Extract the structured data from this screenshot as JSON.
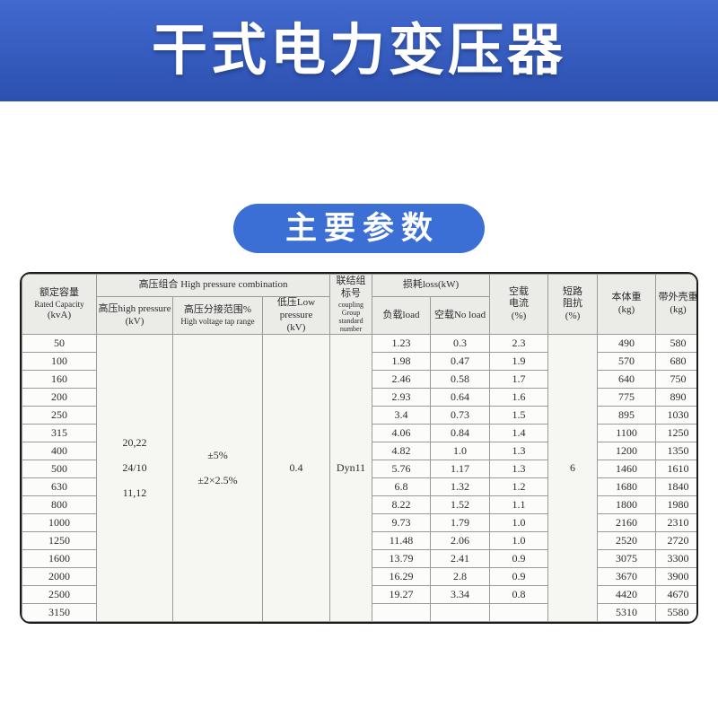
{
  "colors": {
    "banner_top": "#4269cf",
    "banner_bottom": "#2b50b0",
    "badge": "#3b6fd6"
  },
  "banner": {
    "title": "干式电力变压器"
  },
  "section_badge": {
    "label": "主要参数"
  },
  "table": {
    "header": {
      "rated_capacity": [
        "额定容量",
        "Rated Capacity",
        "(kvA)"
      ],
      "hp_group": "高压组合 High pressure combination",
      "high_pressure": [
        "高压high pressure",
        "(kV)"
      ],
      "tap_range": [
        "高压分接范围%",
        "High voltage tap range"
      ],
      "low_pressure": [
        "低压Low pressure",
        "(kV)"
      ],
      "coupling": [
        "联结组",
        "标号",
        "coupling",
        "Group standard",
        "number"
      ],
      "loss_group": "损耗loss(kW)",
      "load": "负载load",
      "no_load": "空载No load",
      "no_load_current": [
        "空载",
        "电流",
        "(%)"
      ],
      "impedance": [
        "短路",
        "阻抗",
        "(%)"
      ],
      "body_weight": [
        "本体重",
        "(kg)"
      ],
      "shell_weight": [
        "带外壳重",
        "(kg)"
      ]
    },
    "merged": {
      "high_pressure": [
        "20,22",
        "24/10",
        "11,12"
      ],
      "tap_range": [
        "±5%",
        "±2×2.5%"
      ],
      "low_pressure": "0.4",
      "coupling": "Dyn11",
      "impedance": "6"
    },
    "rows": [
      {
        "capacity": "50",
        "load": "1.23",
        "no_load": "0.3",
        "current": "2.3",
        "body_weight": "490",
        "shell_weight": "580"
      },
      {
        "capacity": "100",
        "load": "1.98",
        "no_load": "0.47",
        "current": "1.9",
        "body_weight": "570",
        "shell_weight": "680"
      },
      {
        "capacity": "160",
        "load": "2.46",
        "no_load": "0.58",
        "current": "1.7",
        "body_weight": "640",
        "shell_weight": "750"
      },
      {
        "capacity": "200",
        "load": "2.93",
        "no_load": "0.64",
        "current": "1.6",
        "body_weight": "775",
        "shell_weight": "890"
      },
      {
        "capacity": "250",
        "load": "3.4",
        "no_load": "0.73",
        "current": "1.5",
        "body_weight": "895",
        "shell_weight": "1030"
      },
      {
        "capacity": "315",
        "load": "4.06",
        "no_load": "0.84",
        "current": "1.4",
        "body_weight": "1100",
        "shell_weight": "1250"
      },
      {
        "capacity": "400",
        "load": "4.82",
        "no_load": "1.0",
        "current": "1.3",
        "body_weight": "1200",
        "shell_weight": "1350"
      },
      {
        "capacity": "500",
        "load": "5.76",
        "no_load": "1.17",
        "current": "1.3",
        "body_weight": "1460",
        "shell_weight": "1610"
      },
      {
        "capacity": "630",
        "load": "6.8",
        "no_load": "1.32",
        "current": "1.2",
        "body_weight": "1680",
        "shell_weight": "1840"
      },
      {
        "capacity": "800",
        "load": "8.22",
        "no_load": "1.52",
        "current": "1.1",
        "body_weight": "1800",
        "shell_weight": "1980"
      },
      {
        "capacity": "1000",
        "load": "9.73",
        "no_load": "1.79",
        "current": "1.0",
        "body_weight": "2160",
        "shell_weight": "2310"
      },
      {
        "capacity": "1250",
        "load": "11.48",
        "no_load": "2.06",
        "current": "1.0",
        "body_weight": "2520",
        "shell_weight": "2720"
      },
      {
        "capacity": "1600",
        "load": "13.79",
        "no_load": "2.41",
        "current": "0.9",
        "body_weight": "3075",
        "shell_weight": "3300"
      },
      {
        "capacity": "2000",
        "load": "16.29",
        "no_load": "2.8",
        "current": "0.9",
        "body_weight": "3670",
        "shell_weight": "3900"
      },
      {
        "capacity": "2500",
        "load": "19.27",
        "no_load": "3.34",
        "current": "0.8",
        "body_weight": "4420",
        "shell_weight": "4670"
      },
      {
        "capacity": "3150",
        "load": "",
        "no_load": "",
        "current": "",
        "body_weight": "5310",
        "shell_weight": "5580"
      }
    ]
  }
}
